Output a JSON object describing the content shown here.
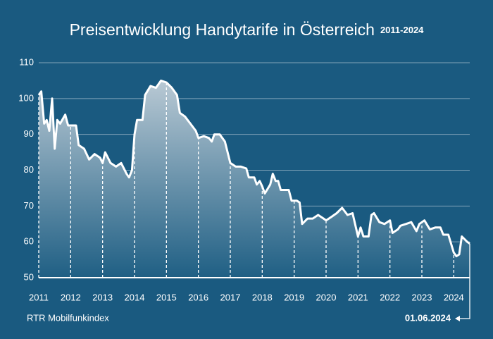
{
  "chart_data": {
    "type": "area",
    "title": "Preisentwicklung Handytarife in Österreich",
    "subtitle": "2011-2024",
    "source": "RTR Mobilfunkindex",
    "end_label": "01.06.2024",
    "color": "#ffffff",
    "x": [
      2011.0,
      2011.08,
      2011.17,
      2011.25,
      2011.33,
      2011.42,
      2011.5,
      2011.58,
      2011.67,
      2011.83,
      2011.92,
      2012.17,
      2012.25,
      2012.42,
      2012.58,
      2012.75,
      2012.92,
      2013.0,
      2013.08,
      2013.25,
      2013.42,
      2013.58,
      2013.75,
      2013.83,
      2013.92,
      2014.0,
      2014.08,
      2014.25,
      2014.33,
      2014.5,
      2014.67,
      2014.83,
      2015.0,
      2015.17,
      2015.33,
      2015.42,
      2015.58,
      2015.75,
      2015.92,
      2016.0,
      2016.17,
      2016.33,
      2016.42,
      2016.5,
      2016.67,
      2016.83,
      2017.0,
      2017.17,
      2017.33,
      2017.5,
      2017.58,
      2017.75,
      2017.83,
      2017.92,
      2018.0,
      2018.08,
      2018.25,
      2018.33,
      2018.42,
      2018.5,
      2018.58,
      2018.83,
      2018.92,
      2019.08,
      2019.17,
      2019.25,
      2019.42,
      2019.58,
      2019.75,
      2019.92,
      2020.0,
      2020.17,
      2020.33,
      2020.5,
      2020.67,
      2020.83,
      2021.0,
      2021.08,
      2021.17,
      2021.33,
      2021.42,
      2021.5,
      2021.67,
      2021.83,
      2022.0,
      2022.08,
      2022.25,
      2022.33,
      2022.5,
      2022.67,
      2022.83,
      2022.92,
      2023.08,
      2023.25,
      2023.42,
      2023.58,
      2023.67,
      2023.83,
      2024.0,
      2024.08,
      2024.17,
      2024.25,
      2024.42,
      2024.5
    ],
    "values": [
      101,
      102,
      93,
      94,
      91,
      100,
      86,
      94,
      93,
      95.5,
      92.5,
      92.5,
      87,
      86,
      83,
      84.5,
      83.5,
      82,
      85,
      82,
      81,
      82,
      79,
      78,
      80,
      90,
      94,
      94,
      101,
      103.5,
      103,
      105,
      104.5,
      103,
      101,
      96,
      95,
      93,
      91,
      89,
      89.5,
      89,
      88,
      90,
      90,
      88,
      82,
      81,
      81,
      80.5,
      78,
      78,
      76,
      77,
      75.5,
      73.5,
      76,
      79,
      77,
      77,
      74.5,
      74.5,
      71.5,
      71.5,
      71,
      65,
      66.5,
      66.5,
      67.5,
      66.5,
      66,
      67,
      68,
      69.5,
      67.5,
      68,
      61.5,
      64,
      61.5,
      61.5,
      67.5,
      68,
      65.5,
      65,
      66,
      62.5,
      63.5,
      64.5,
      65,
      65.5,
      63,
      65,
      66,
      63.5,
      64,
      64,
      62,
      62,
      57,
      56,
      56.5,
      61.5,
      60,
      59.5
    ],
    "xlim": [
      2011,
      2024.5
    ],
    "xticks": [
      2011,
      2012,
      2013,
      2014,
      2015,
      2016,
      2017,
      2018,
      2019,
      2020,
      2021,
      2022,
      2023,
      2024
    ],
    "ylim": [
      50,
      110
    ],
    "yticks": [
      50,
      60,
      70,
      80,
      90,
      100,
      110
    ],
    "grid": true
  }
}
